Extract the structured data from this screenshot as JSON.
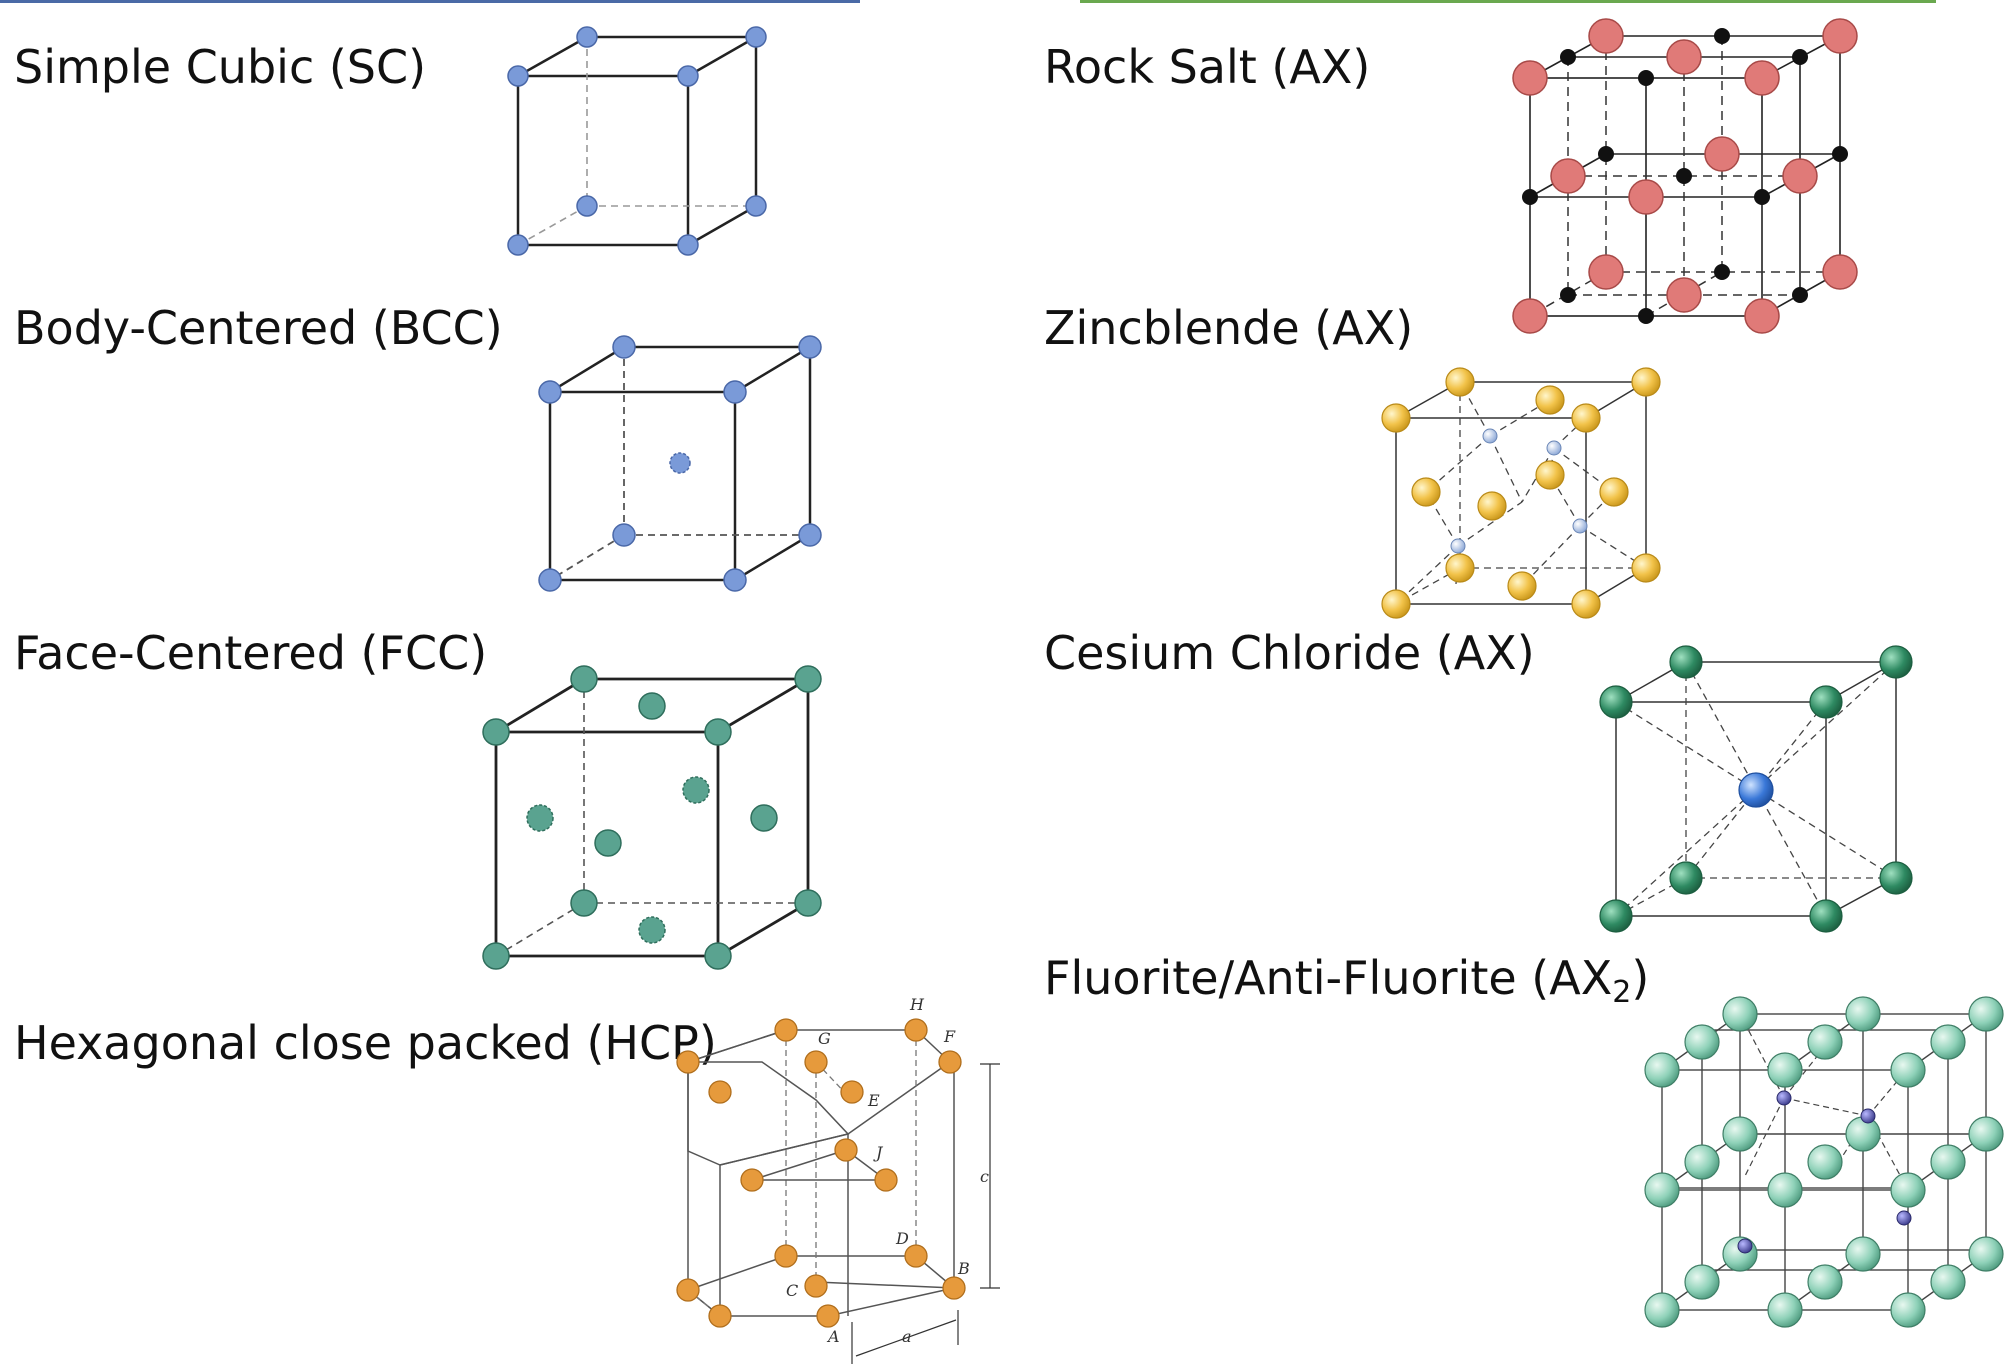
{
  "colors": {
    "left_rule": "#4a6aa6",
    "right_rule": "#6aa84f",
    "sc_atom": "#7a9ad8",
    "fcc_atom": "#5aa390",
    "hcp_atom": "#e69a3c",
    "rocksalt_anion": "#e07a78",
    "rocksalt_cation": "#111111",
    "zincblende_anion": "#f2c34a",
    "zincblende_cation": "#9cb4dc",
    "cscl_corner": "#2e8a62",
    "cscl_center": "#3a78d8",
    "fluorite_anion": "#8ed1b8",
    "fluorite_cation": "#5a5aa8"
  },
  "left_column": {
    "simple_cubic": "Simple Cubic (SC)",
    "bcc": "Body-Centered (BCC)",
    "fcc": "Face-Centered (FCC)",
    "hcp": "Hexagonal close packed (HCP)"
  },
  "right_column": {
    "rock_salt": "Rock Salt (AX)",
    "zincblende": "Zincblende (AX)",
    "cesium_chloride": "Cesium Chloride (AX)",
    "fluorite_prefix": "Fluorite/Anti-Fluorite (AX",
    "fluorite_sub": "2",
    "fluorite_suffix": ")"
  },
  "hcp_point_labels": [
    "H",
    "G",
    "F",
    "E",
    "J",
    "D",
    "C",
    "B",
    "A",
    "c",
    "a"
  ]
}
